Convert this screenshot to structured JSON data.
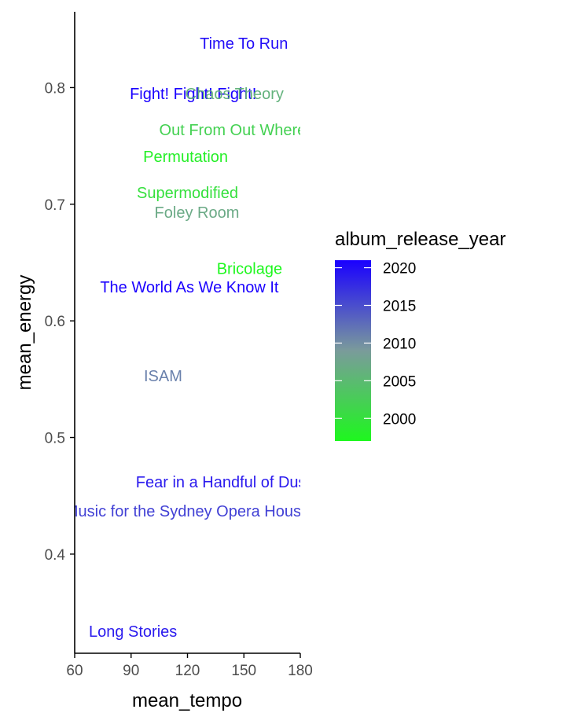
{
  "chart_data": {
    "type": "scatter",
    "xlabel": "mean_tempo",
    "ylabel": "mean_energy",
    "xlim": [
      60,
      180
    ],
    "ylim": [
      0.315,
      0.865
    ],
    "x_ticks": [
      "60",
      "90",
      "120",
      "150",
      "180"
    ],
    "y_ticks": [
      "0.4",
      "0.5",
      "0.6",
      "0.7",
      "0.8"
    ],
    "grid": false,
    "legend": {
      "title": "album_release_year",
      "placement": "right",
      "min_year": 1997,
      "max_year": 2021,
      "breaks": [
        "2000",
        "2005",
        "2010",
        "2015",
        "2020"
      ],
      "low_color": "#1ef71e",
      "mid_color": "#7a9b9b",
      "high_color": "#1a00ff"
    },
    "points": [
      {
        "label": "Time To Run",
        "x": 150,
        "y": 0.838,
        "year": 2020
      },
      {
        "label": "Fight! Fight! Fight!",
        "x": 123,
        "y": 0.795,
        "year": 2021
      },
      {
        "label": "Chaos Theory",
        "x": 145,
        "y": 0.795,
        "year": 2006
      },
      {
        "label": "Out From Out Where",
        "x": 144,
        "y": 0.764,
        "year": 2002
      },
      {
        "label": "Permutation",
        "x": 119,
        "y": 0.741,
        "year": 1998
      },
      {
        "label": "Supermodified",
        "x": 120,
        "y": 0.71,
        "year": 2000
      },
      {
        "label": "Foley Room",
        "x": 125,
        "y": 0.693,
        "year": 2007
      },
      {
        "label": "Bricolage",
        "x": 153,
        "y": 0.645,
        "year": 1997
      },
      {
        "label": "The World As We Know It",
        "x": 121,
        "y": 0.629,
        "year": 2021
      },
      {
        "label": "ISAM",
        "x": 107,
        "y": 0.553,
        "year": 2011
      },
      {
        "label": "Fear in a Handful of Dust",
        "x": 139,
        "y": 0.462,
        "year": 2019
      },
      {
        "label": "Music for the Sydney Opera House",
        "x": 120,
        "y": 0.437,
        "year": 2016
      },
      {
        "label": "Long Stories",
        "x": 91,
        "y": 0.334,
        "year": 2019
      }
    ]
  }
}
